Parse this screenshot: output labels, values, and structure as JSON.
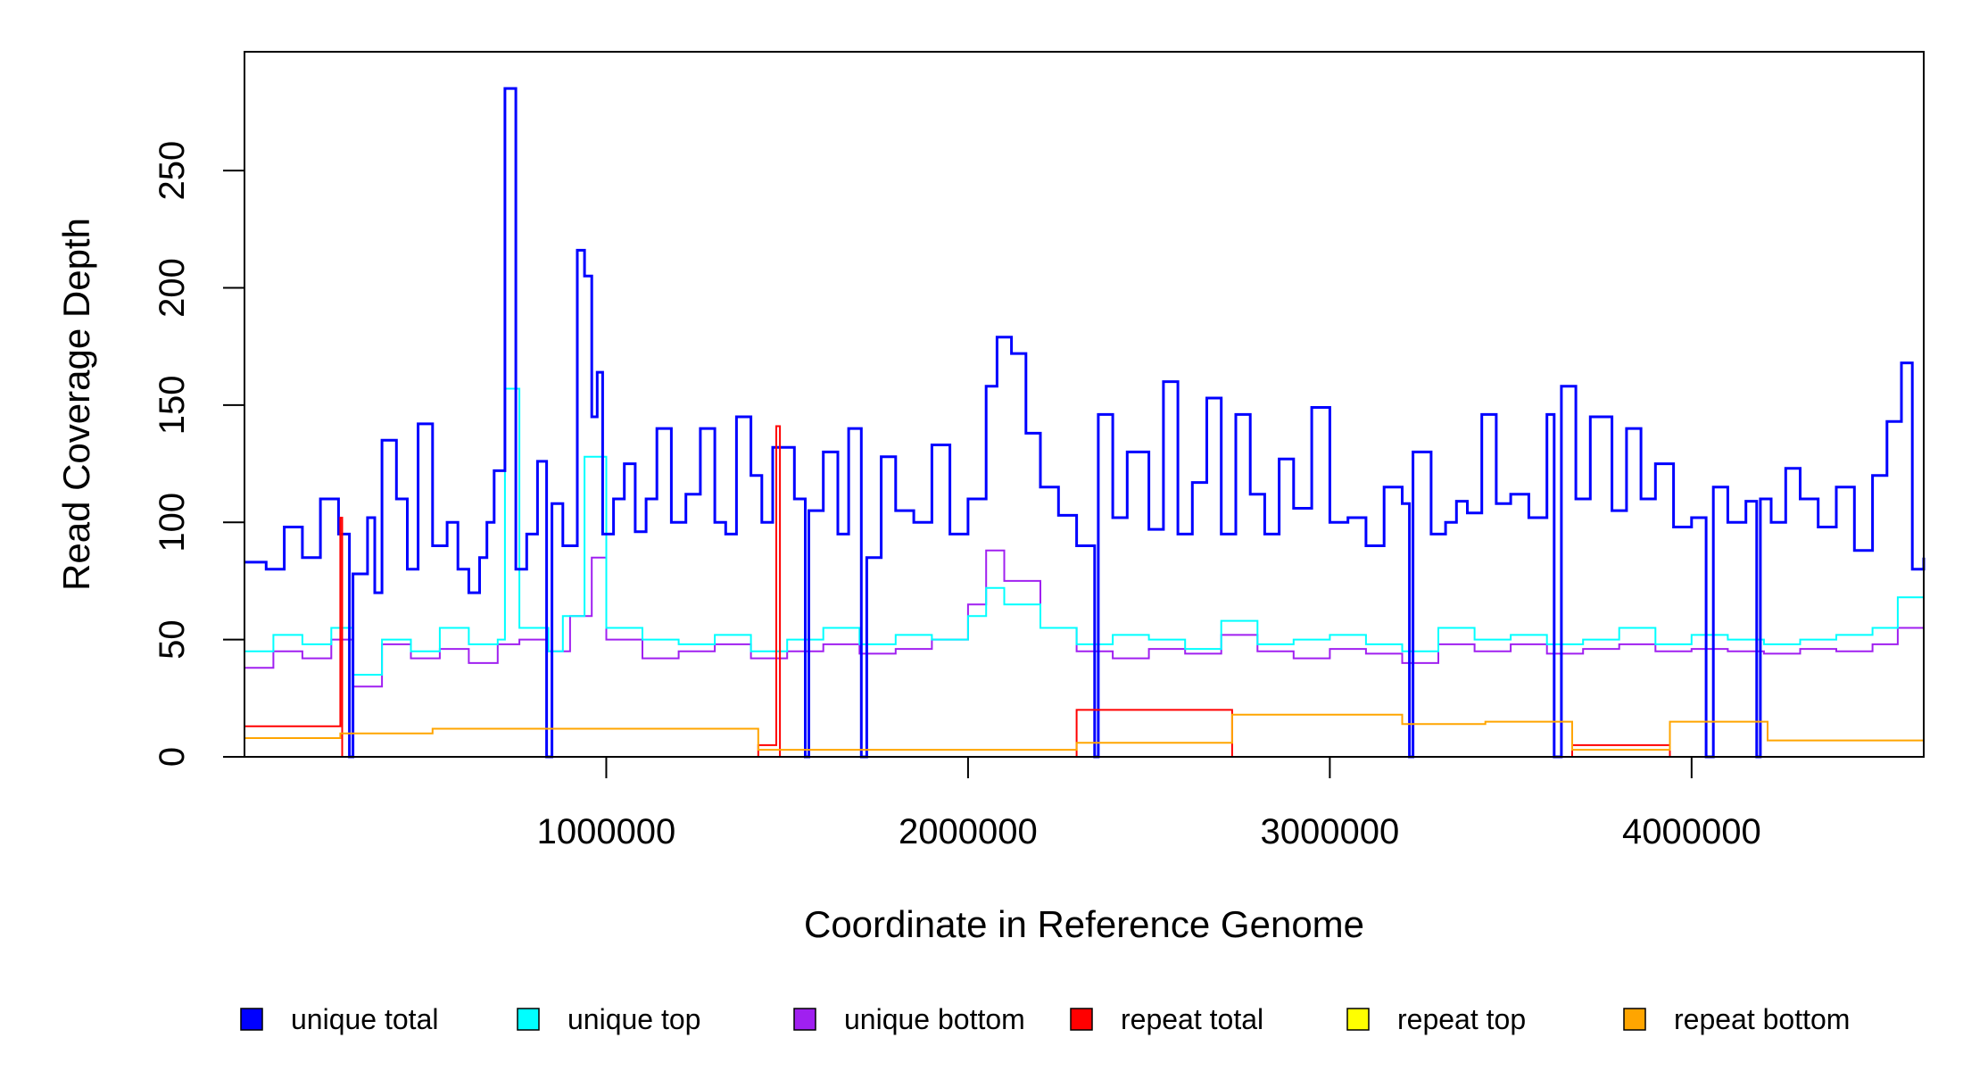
{
  "chart_data": {
    "type": "line",
    "xlabel": "Coordinate in Reference Genome",
    "ylabel": "Read Coverage Depth",
    "xlim": [
      1,
      4641652
    ],
    "ylim": [
      0,
      290
    ],
    "xticks": [
      {
        "value": 1000000,
        "label": "1000000"
      },
      {
        "value": 2000000,
        "label": "2000000"
      },
      {
        "value": 3000000,
        "label": "3000000"
      },
      {
        "value": 4000000,
        "label": "4000000"
      }
    ],
    "yticks": [
      {
        "value": 0,
        "label": "0"
      },
      {
        "value": 50,
        "label": "50"
      },
      {
        "value": 100,
        "label": "100"
      },
      {
        "value": 150,
        "label": "150"
      },
      {
        "value": 200,
        "label": "200"
      },
      {
        "value": 250,
        "label": "250"
      }
    ],
    "legend": {
      "placement": "bottom",
      "entries": [
        {
          "label": "unique total",
          "color": "#0000ff"
        },
        {
          "label": "unique top",
          "color": "#00ffff"
        },
        {
          "label": "unique bottom",
          "color": "#a020f0"
        },
        {
          "label": "repeat total",
          "color": "#ff0000"
        },
        {
          "label": "repeat top",
          "color": "#ffff00"
        },
        {
          "label": "repeat bottom",
          "color": "#ffa500"
        }
      ]
    },
    "series": [
      {
        "name": "unique total",
        "color": "#0000ff",
        "points": [
          [
            1,
            83
          ],
          [
            60000,
            80
          ],
          [
            110000,
            98
          ],
          [
            160000,
            85
          ],
          [
            210000,
            110
          ],
          [
            260000,
            95
          ],
          [
            290000,
            0
          ],
          [
            300000,
            78
          ],
          [
            340000,
            102
          ],
          [
            360000,
            70
          ],
          [
            380000,
            135
          ],
          [
            420000,
            110
          ],
          [
            450000,
            80
          ],
          [
            480000,
            142
          ],
          [
            520000,
            90
          ],
          [
            560000,
            100
          ],
          [
            590000,
            80
          ],
          [
            620000,
            70
          ],
          [
            650000,
            85
          ],
          [
            670000,
            100
          ],
          [
            690000,
            122
          ],
          [
            720000,
            285
          ],
          [
            750000,
            80
          ],
          [
            780000,
            95
          ],
          [
            810000,
            126
          ],
          [
            835000,
            0
          ],
          [
            850000,
            108
          ],
          [
            880000,
            90
          ],
          [
            920000,
            216
          ],
          [
            940000,
            205
          ],
          [
            960000,
            145
          ],
          [
            975000,
            164
          ],
          [
            990000,
            95
          ],
          [
            1020000,
            110
          ],
          [
            1050000,
            125
          ],
          [
            1080000,
            96
          ],
          [
            1110000,
            110
          ],
          [
            1140000,
            140
          ],
          [
            1180000,
            100
          ],
          [
            1220000,
            112
          ],
          [
            1260000,
            140
          ],
          [
            1300000,
            100
          ],
          [
            1330000,
            95
          ],
          [
            1360000,
            145
          ],
          [
            1400000,
            120
          ],
          [
            1430000,
            100
          ],
          [
            1460000,
            132
          ],
          [
            1520000,
            110
          ],
          [
            1550000,
            0
          ],
          [
            1560000,
            105
          ],
          [
            1600000,
            130
          ],
          [
            1640000,
            95
          ],
          [
            1670000,
            140
          ],
          [
            1705000,
            0
          ],
          [
            1720000,
            85
          ],
          [
            1760000,
            128
          ],
          [
            1800000,
            105
          ],
          [
            1850000,
            100
          ],
          [
            1900000,
            133
          ],
          [
            1950000,
            95
          ],
          [
            2000000,
            110
          ],
          [
            2050000,
            158
          ],
          [
            2080000,
            179
          ],
          [
            2120000,
            172
          ],
          [
            2160000,
            138
          ],
          [
            2200000,
            115
          ],
          [
            2250000,
            103
          ],
          [
            2300000,
            90
          ],
          [
            2350000,
            0
          ],
          [
            2360000,
            146
          ],
          [
            2400000,
            102
          ],
          [
            2440000,
            130
          ],
          [
            2500000,
            97
          ],
          [
            2540000,
            160
          ],
          [
            2580000,
            95
          ],
          [
            2620000,
            117
          ],
          [
            2660000,
            153
          ],
          [
            2700000,
            95
          ],
          [
            2740000,
            146
          ],
          [
            2780000,
            112
          ],
          [
            2820000,
            95
          ],
          [
            2860000,
            127
          ],
          [
            2900000,
            106
          ],
          [
            2950000,
            149
          ],
          [
            3000000,
            100
          ],
          [
            3050000,
            102
          ],
          [
            3100000,
            90
          ],
          [
            3150000,
            115
          ],
          [
            3200000,
            108
          ],
          [
            3220000,
            0
          ],
          [
            3230000,
            130
          ],
          [
            3280000,
            95
          ],
          [
            3320000,
            100
          ],
          [
            3350000,
            109
          ],
          [
            3380000,
            104
          ],
          [
            3420000,
            146
          ],
          [
            3460000,
            108
          ],
          [
            3500000,
            112
          ],
          [
            3550000,
            102
          ],
          [
            3600000,
            146
          ],
          [
            3620000,
            0
          ],
          [
            3640000,
            158
          ],
          [
            3680000,
            110
          ],
          [
            3720000,
            145
          ],
          [
            3780000,
            105
          ],
          [
            3820000,
            140
          ],
          [
            3860000,
            110
          ],
          [
            3900000,
            125
          ],
          [
            3950000,
            98
          ],
          [
            4000000,
            102
          ],
          [
            4040000,
            0
          ],
          [
            4060000,
            115
          ],
          [
            4100000,
            100
          ],
          [
            4150000,
            109
          ],
          [
            4180000,
            0
          ],
          [
            4190000,
            110
          ],
          [
            4220000,
            100
          ],
          [
            4260000,
            123
          ],
          [
            4300000,
            110
          ],
          [
            4350000,
            98
          ],
          [
            4400000,
            115
          ],
          [
            4450000,
            88
          ],
          [
            4500000,
            120
          ],
          [
            4540000,
            143
          ],
          [
            4580000,
            168
          ],
          [
            4610000,
            80
          ],
          [
            4641652,
            85
          ]
        ]
      },
      {
        "name": "unique top",
        "color": "#00ffff",
        "points": [
          [
            1,
            45
          ],
          [
            80000,
            52
          ],
          [
            160000,
            48
          ],
          [
            240000,
            55
          ],
          [
            300000,
            35
          ],
          [
            380000,
            50
          ],
          [
            460000,
            45
          ],
          [
            540000,
            55
          ],
          [
            620000,
            48
          ],
          [
            700000,
            50
          ],
          [
            720000,
            157
          ],
          [
            760000,
            55
          ],
          [
            840000,
            45
          ],
          [
            880000,
            60
          ],
          [
            940000,
            128
          ],
          [
            1000000,
            55
          ],
          [
            1100000,
            50
          ],
          [
            1200000,
            48
          ],
          [
            1300000,
            52
          ],
          [
            1400000,
            45
          ],
          [
            1500000,
            50
          ],
          [
            1600000,
            55
          ],
          [
            1700000,
            48
          ],
          [
            1800000,
            52
          ],
          [
            1900000,
            50
          ],
          [
            2000000,
            60
          ],
          [
            2050000,
            72
          ],
          [
            2100000,
            65
          ],
          [
            2200000,
            55
          ],
          [
            2300000,
            48
          ],
          [
            2400000,
            52
          ],
          [
            2500000,
            50
          ],
          [
            2600000,
            46
          ],
          [
            2700000,
            58
          ],
          [
            2800000,
            48
          ],
          [
            2900000,
            50
          ],
          [
            3000000,
            52
          ],
          [
            3100000,
            48
          ],
          [
            3200000,
            45
          ],
          [
            3300000,
            55
          ],
          [
            3400000,
            50
          ],
          [
            3500000,
            52
          ],
          [
            3600000,
            48
          ],
          [
            3700000,
            50
          ],
          [
            3800000,
            55
          ],
          [
            3900000,
            48
          ],
          [
            4000000,
            52
          ],
          [
            4100000,
            50
          ],
          [
            4200000,
            48
          ],
          [
            4300000,
            50
          ],
          [
            4400000,
            52
          ],
          [
            4500000,
            55
          ],
          [
            4570000,
            68
          ],
          [
            4641652,
            48
          ]
        ]
      },
      {
        "name": "unique bottom",
        "color": "#a020f0",
        "points": [
          [
            1,
            38
          ],
          [
            80000,
            45
          ],
          [
            160000,
            42
          ],
          [
            240000,
            50
          ],
          [
            300000,
            30
          ],
          [
            380000,
            48
          ],
          [
            460000,
            42
          ],
          [
            540000,
            46
          ],
          [
            620000,
            40
          ],
          [
            700000,
            48
          ],
          [
            760000,
            50
          ],
          [
            840000,
            45
          ],
          [
            900000,
            60
          ],
          [
            960000,
            85
          ],
          [
            1000000,
            50
          ],
          [
            1100000,
            42
          ],
          [
            1200000,
            45
          ],
          [
            1300000,
            48
          ],
          [
            1400000,
            42
          ],
          [
            1500000,
            45
          ],
          [
            1600000,
            48
          ],
          [
            1700000,
            44
          ],
          [
            1800000,
            46
          ],
          [
            1900000,
            50
          ],
          [
            2000000,
            65
          ],
          [
            2050000,
            88
          ],
          [
            2100000,
            75
          ],
          [
            2200000,
            55
          ],
          [
            2300000,
            45
          ],
          [
            2400000,
            42
          ],
          [
            2500000,
            46
          ],
          [
            2600000,
            44
          ],
          [
            2700000,
            52
          ],
          [
            2800000,
            45
          ],
          [
            2900000,
            42
          ],
          [
            3000000,
            46
          ],
          [
            3100000,
            44
          ],
          [
            3200000,
            40
          ],
          [
            3300000,
            48
          ],
          [
            3400000,
            45
          ],
          [
            3500000,
            48
          ],
          [
            3600000,
            44
          ],
          [
            3700000,
            46
          ],
          [
            3800000,
            48
          ],
          [
            3900000,
            45
          ],
          [
            4000000,
            46
          ],
          [
            4100000,
            45
          ],
          [
            4200000,
            44
          ],
          [
            4300000,
            46
          ],
          [
            4400000,
            45
          ],
          [
            4500000,
            48
          ],
          [
            4570000,
            55
          ],
          [
            4641652,
            42
          ]
        ]
      },
      {
        "name": "repeat total",
        "color": "#ff0000",
        "points": [
          [
            1,
            13
          ],
          [
            270000,
            0
          ],
          [
            265000,
            102
          ],
          [
            520000,
            0
          ],
          [
            1420000,
            5
          ],
          [
            1470000,
            141
          ],
          [
            1480000,
            0
          ],
          [
            2300000,
            20
          ],
          [
            2730000,
            0
          ],
          [
            3200000,
            0
          ],
          [
            3430000,
            0
          ],
          [
            3670000,
            5
          ],
          [
            3940000,
            0
          ],
          [
            4210000,
            0
          ],
          [
            4641652,
            0
          ]
        ]
      },
      {
        "name": "repeat top",
        "color": "#ffff00",
        "points": [
          [
            1,
            0
          ],
          [
            4641652,
            0
          ]
        ]
      },
      {
        "name": "repeat bottom",
        "color": "#ffa500",
        "points": [
          [
            1,
            8
          ],
          [
            265000,
            10
          ],
          [
            520000,
            12
          ],
          [
            1420000,
            3
          ],
          [
            2300000,
            6
          ],
          [
            2730000,
            18
          ],
          [
            3200000,
            14
          ],
          [
            3430000,
            15
          ],
          [
            3670000,
            3
          ],
          [
            3940000,
            15
          ],
          [
            4210000,
            7
          ],
          [
            4641652,
            0
          ]
        ]
      }
    ]
  }
}
